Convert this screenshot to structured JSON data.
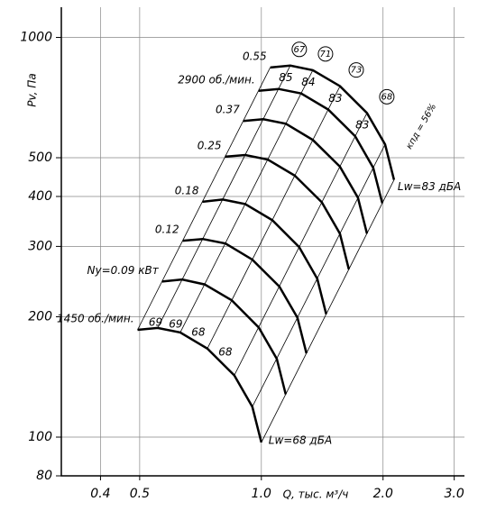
{
  "chart_data": {
    "type": "line",
    "y_label": "Pv, Па",
    "x_label": "Q, тыс. м³/ч",
    "log_x": true,
    "log_y": true,
    "xlim": [
      0.32,
      3.18
    ],
    "ylim": [
      80,
      1190
    ],
    "xticks": [
      0.4,
      0.5,
      {
        "value": 1.0,
        "label": "1.0"
      },
      {
        "value": 2.0,
        "label": "2.0"
      },
      {
        "value": 3.0,
        "label": "3.0"
      }
    ],
    "yticks": [
      80,
      100,
      200,
      300,
      400,
      500,
      1000
    ],
    "grid": true,
    "series": [
      {
        "name": "1450 об./мин.",
        "color": "#000000",
        "x": [
          0.494,
          0.554,
          0.63,
          0.735,
          0.857,
          0.95,
          1.0
        ],
        "y": [
          185.5,
          187.5,
          182.7,
          166.5,
          142.7,
          119.1,
          97
        ]
      },
      {
        "name": "Ny=0.09 кВт",
        "color": "#000000",
        "x": [
          0.568,
          0.637,
          0.724,
          0.845,
          0.985,
          1.092,
          1.149
        ],
        "y": [
          245,
          248,
          241,
          220,
          188,
          157,
          128
        ]
      },
      {
        "name": "0.12",
        "color": "#000000",
        "x": [
          0.639,
          0.716,
          0.815,
          0.95,
          1.108,
          1.228,
          1.293
        ],
        "y": [
          310,
          313,
          305,
          278,
          238,
          199,
          162
        ]
      },
      {
        "name": "0.18",
        "color": "#000000",
        "x": [
          0.715,
          0.802,
          0.912,
          1.064,
          1.24,
          1.375,
          1.447
        ],
        "y": [
          388,
          393,
          383,
          349,
          299,
          249,
          203
        ]
      },
      {
        "name": "0.25",
        "color": "#000000",
        "x": [
          0.813,
          0.912,
          1.037,
          1.21,
          1.411,
          1.564,
          1.646
        ],
        "y": [
          503,
          508,
          495,
          451,
          387,
          323,
          263
        ]
      },
      {
        "name": "0.37",
        "color": "#000000",
        "x": [
          0.902,
          1.011,
          1.15,
          1.341,
          1.564,
          1.734,
          1.825
        ],
        "y": [
          618,
          624,
          608,
          554,
          475,
          397,
          323
        ]
      },
      {
        "name": "2900 об./мин.",
        "color": "#000000",
        "x": [
          0.984,
          1.103,
          1.254,
          1.463,
          1.706,
          1.891,
          1.991
        ],
        "y": [
          735,
          743,
          724,
          660,
          566,
          472,
          385
        ]
      },
      {
        "name": "0.55",
        "color": "#000000",
        "x": [
          1.052,
          1.179,
          1.341,
          1.565,
          1.825,
          2.023,
          2.129
        ],
        "y": [
          841,
          850,
          828,
          755,
          647,
          540,
          440
        ]
      }
    ],
    "efficiency_labels": [
      "67",
      "71",
      "73",
      "68"
    ],
    "efficiency_title": "кпд = 56%",
    "noise_high": [
      "85",
      "84",
      "83",
      "83"
    ],
    "noise_low": [
      "69",
      "69",
      "68",
      "68"
    ],
    "noise_high_label": "Lw=83 дБА",
    "noise_low_label": "Lw=68 дБА"
  }
}
